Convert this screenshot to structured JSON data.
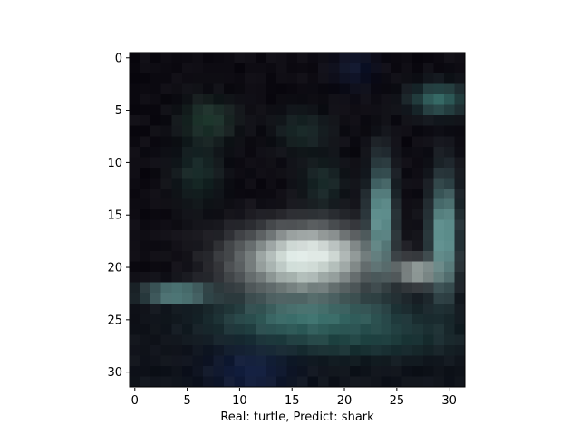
{
  "image": {
    "grid": [
      32,
      32
    ],
    "subject": "blurry low-resolution image of a pale bird-like shape on dark water",
    "colors": {
      "background": "#0d0b12",
      "water_dark": "#111a22",
      "teal": "#3f7f79",
      "teal_light": "#78b7b3",
      "pale": "#d8e8e1",
      "highlight": "#eef5f2",
      "blue_tint": "#122048"
    }
  },
  "axes": {
    "x_ticks": [
      "0",
      "5",
      "10",
      "15",
      "20",
      "25",
      "30"
    ],
    "y_ticks": [
      "0",
      "5",
      "10",
      "15",
      "20",
      "25",
      "30"
    ]
  },
  "caption": "Real: turtle, Predict: shark"
}
